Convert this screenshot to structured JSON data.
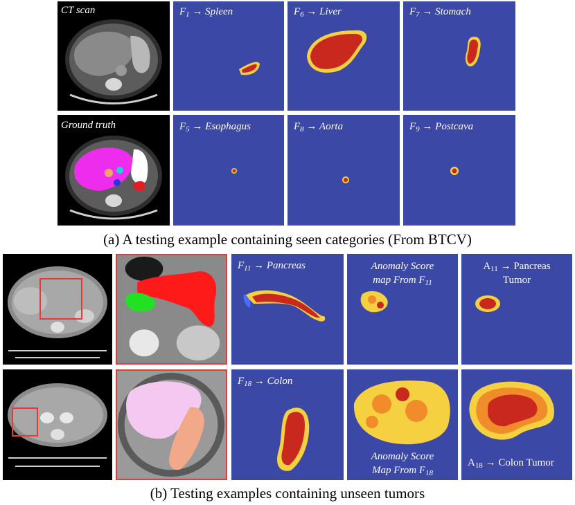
{
  "figure_a": {
    "caption": "(a) A testing example containing seen categories (From BTCV)",
    "row1": {
      "ct_label": "CT scan",
      "maps": [
        {
          "f": "F",
          "sub": "1",
          "arrow": " → ",
          "organ": "Spleen"
        },
        {
          "f": "F",
          "sub": "6",
          "arrow": " → ",
          "organ": "Liver"
        },
        {
          "f": "F",
          "sub": "7",
          "arrow": " → ",
          "organ": "Stomach"
        }
      ]
    },
    "row2": {
      "ct_label": "Ground truth",
      "maps": [
        {
          "f": "F",
          "sub": "5",
          "arrow": " → ",
          "organ": "Esophagus"
        },
        {
          "f": "F",
          "sub": "8",
          "arrow": " → ",
          "organ": "Aorta"
        },
        {
          "f": "F",
          "sub": "9",
          "arrow": " → ",
          "organ": "Postcava"
        }
      ]
    }
  },
  "figure_b": {
    "caption": "(b) Testing examples containing unseen tumors",
    "row1": {
      "feature": {
        "f": "F",
        "sub": "11",
        "arrow": " → ",
        "organ": "Pancreas"
      },
      "anomaly": {
        "line1": "Anomaly Score",
        "line2_prefix": "map From ",
        "f": "F",
        "sub": "11"
      },
      "tumor": {
        "a": "A",
        "sub": "11",
        "arrow": " → ",
        "line1": "Pancreas",
        "line2": "Tumor"
      }
    },
    "row2": {
      "feature": {
        "f": "F",
        "sub": "18",
        "arrow": " → ",
        "organ": "Colon"
      },
      "anomaly": {
        "line1": "Anomaly Score",
        "line2_prefix": "Map From ",
        "f": "F",
        "sub": "18"
      },
      "tumor": {
        "a": "A",
        "sub": "18",
        "arrow": " → ",
        "text": "Colon Tumor"
      }
    }
  },
  "colors": {
    "heatmap_background": "#3b48a5",
    "zoom_box": "#e23b3b",
    "hot": "#c8281e"
  }
}
